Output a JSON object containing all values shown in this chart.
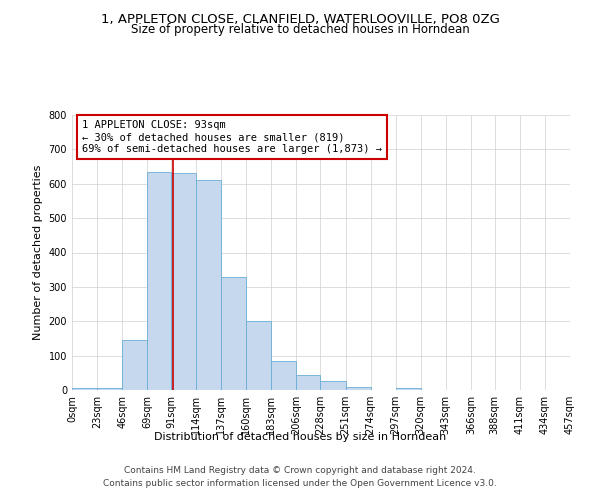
{
  "title": "1, APPLETON CLOSE, CLANFIELD, WATERLOOVILLE, PO8 0ZG",
  "subtitle": "Size of property relative to detached houses in Horndean",
  "xlabel": "Distribution of detached houses by size in Horndean",
  "ylabel": "Number of detached properties",
  "bin_labels": [
    "0sqm",
    "23sqm",
    "46sqm",
    "69sqm",
    "91sqm",
    "114sqm",
    "137sqm",
    "160sqm",
    "183sqm",
    "206sqm",
    "228sqm",
    "251sqm",
    "274sqm",
    "297sqm",
    "320sqm",
    "343sqm",
    "366sqm",
    "388sqm",
    "411sqm",
    "434sqm",
    "457sqm"
  ],
  "bin_edges": [
    0,
    23,
    46,
    69,
    91,
    114,
    137,
    160,
    183,
    206,
    228,
    251,
    274,
    297,
    320,
    343,
    366,
    388,
    411,
    434,
    457
  ],
  "bar_heights": [
    5,
    5,
    145,
    635,
    630,
    610,
    330,
    200,
    85,
    45,
    25,
    10,
    0,
    5,
    0,
    0,
    0,
    0,
    0,
    0
  ],
  "bar_color": "#c5d8ed",
  "bar_edge_color": "#6aaed6",
  "vline_x": 93,
  "vline_color": "#cc0000",
  "annotation_line1": "1 APPLETON CLOSE: 93sqm",
  "annotation_line2": "← 30% of detached houses are smaller (819)",
  "annotation_line3": "69% of semi-detached houses are larger (1,873) →",
  "annotation_box_color": "#ffffff",
  "annotation_box_edge": "#cc0000",
  "ylim": [
    0,
    800
  ],
  "yticks": [
    0,
    100,
    200,
    300,
    400,
    500,
    600,
    700,
    800
  ],
  "footer_text": "Contains HM Land Registry data © Crown copyright and database right 2024.\nContains public sector information licensed under the Open Government Licence v3.0.",
  "bg_color": "#ffffff",
  "grid_color": "#d0d0d0",
  "title_fontsize": 9.5,
  "subtitle_fontsize": 8.5,
  "axis_label_fontsize": 8,
  "tick_fontsize": 7,
  "annotation_fontsize": 7.5,
  "footer_fontsize": 6.5
}
